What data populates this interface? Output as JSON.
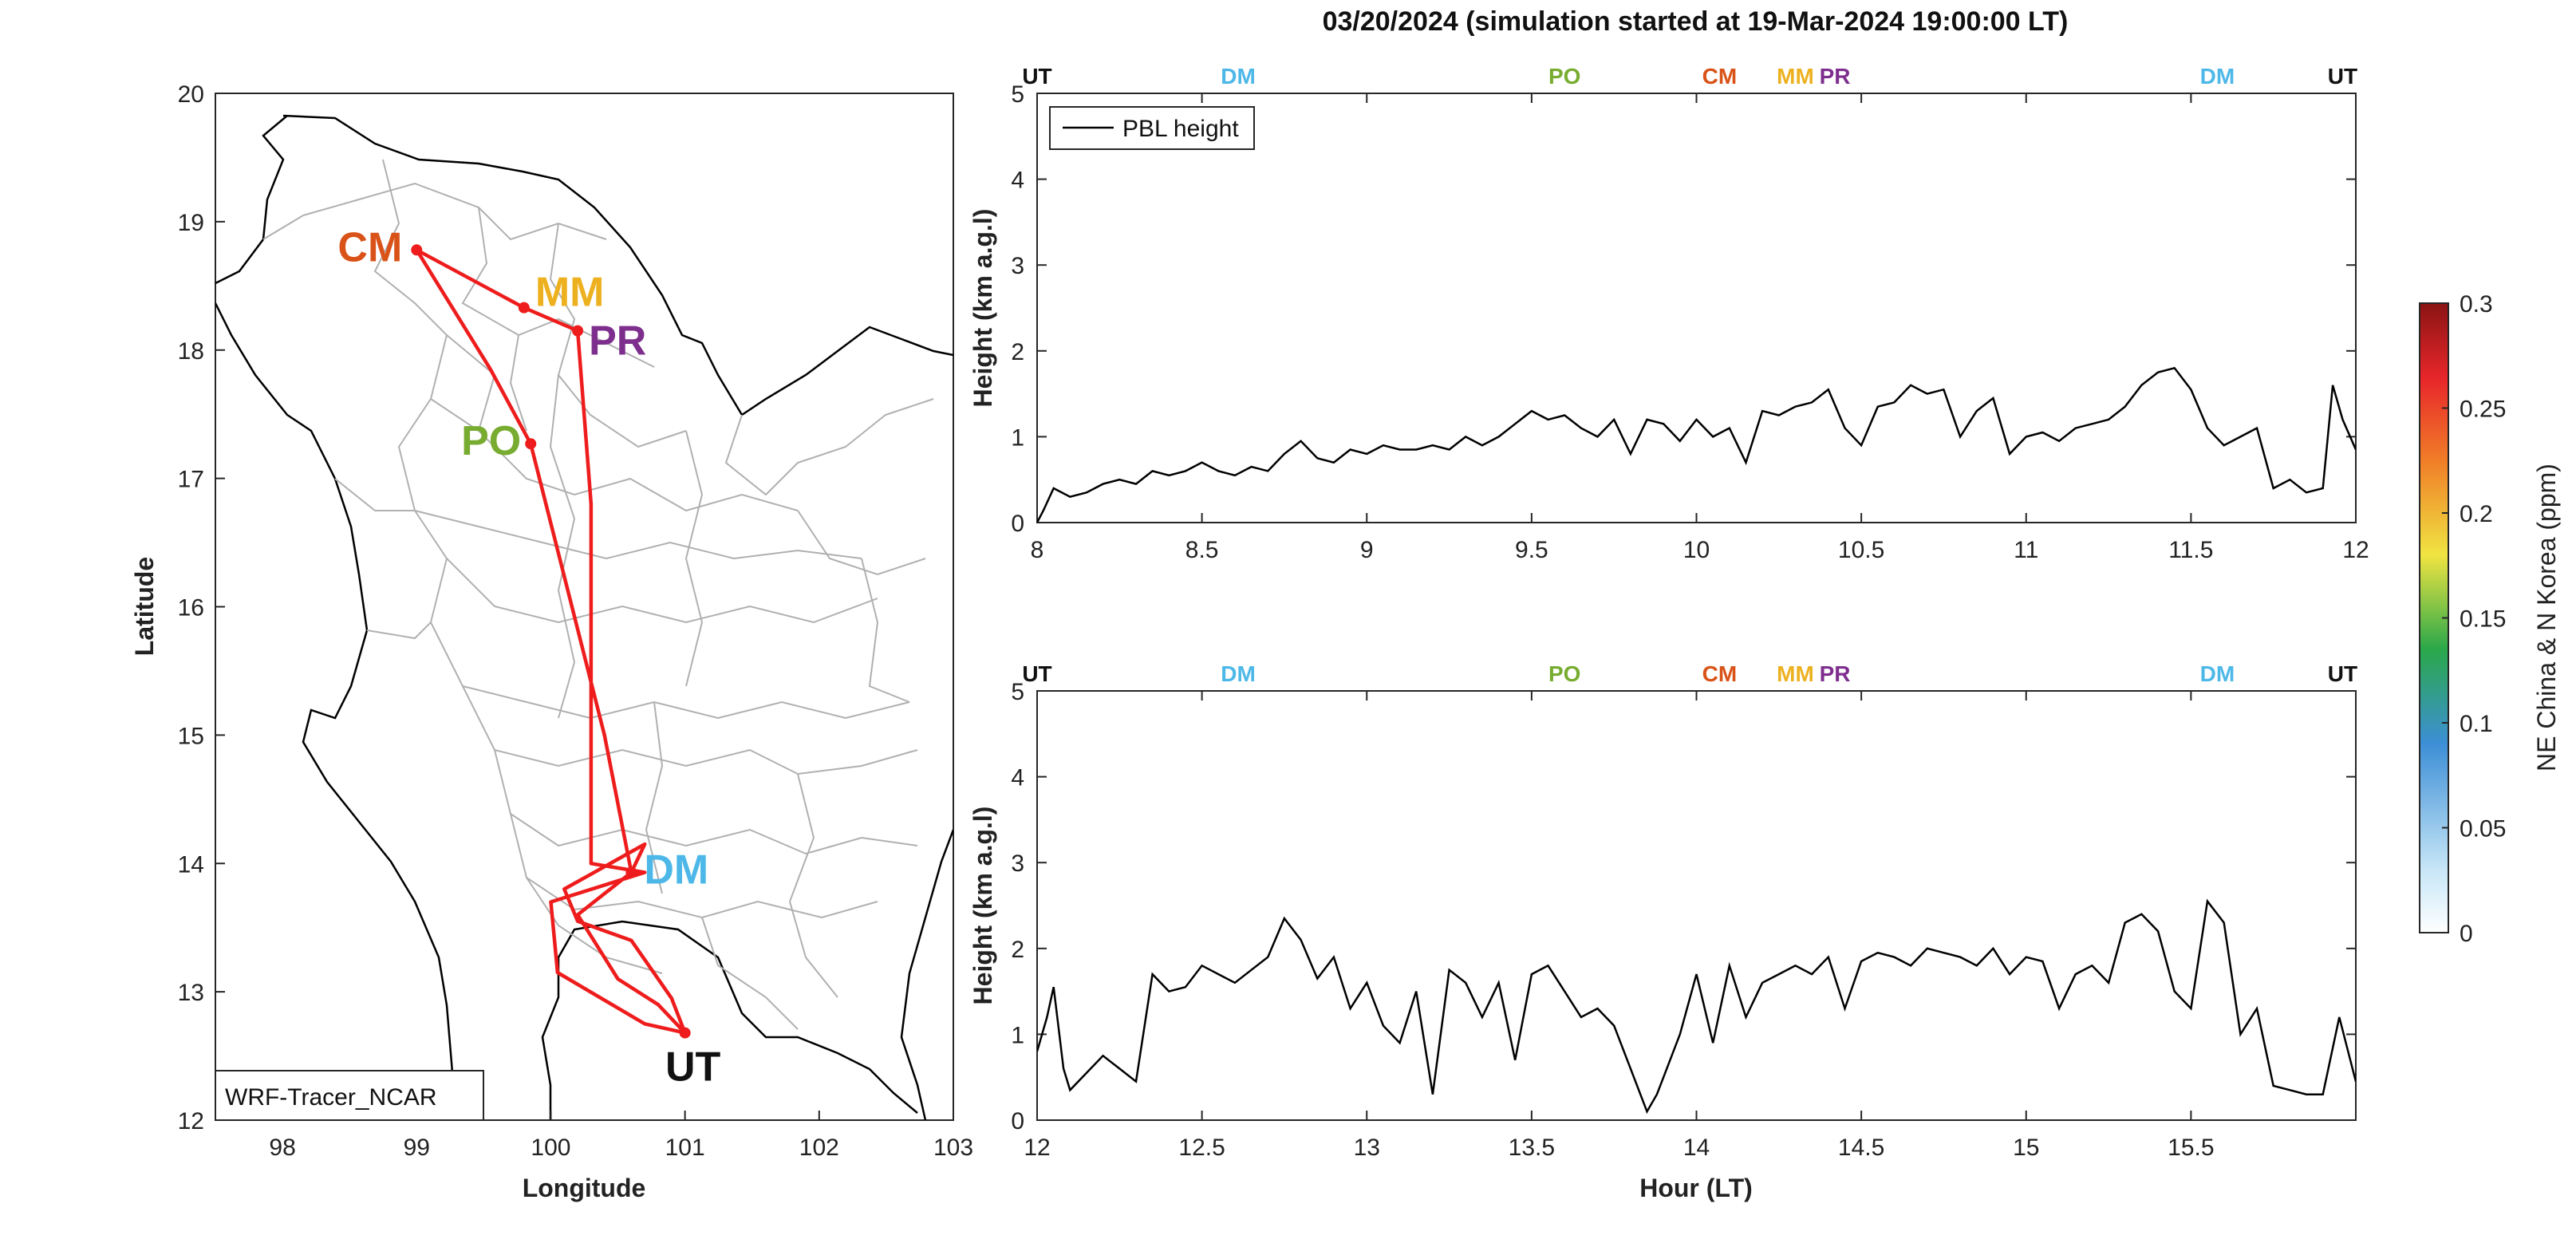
{
  "figure_title": "03/20/2024 (simulation started at 19-Mar-2024 19:00:00 LT)",
  "colors": {
    "route": "#ee1c1c",
    "pbl_line": "#000000",
    "UT": "#111111",
    "DM": "#4db8e8",
    "PO": "#77ac30",
    "CM": "#d95319",
    "MM": "#edb120",
    "PR": "#7e2f8e"
  },
  "chart_data": [
    {
      "type": "map",
      "id": "route_map",
      "xlabel": "Longitude",
      "ylabel": "Latitude",
      "xlim": [
        97.5,
        103
      ],
      "ylim": [
        12,
        20
      ],
      "xticks": [
        98,
        99,
        100,
        101,
        102,
        103
      ],
      "yticks": [
        12,
        13,
        14,
        15,
        16,
        17,
        18,
        19,
        20
      ],
      "legend": "WRF-Tracer_NCAR",
      "stations": [
        {
          "name": "CM",
          "lon": 99.0,
          "lat": 18.78
        },
        {
          "name": "MM",
          "lon": 99.8,
          "lat": 18.33
        },
        {
          "name": "PR",
          "lon": 100.2,
          "lat": 18.15
        },
        {
          "name": "PO",
          "lon": 99.85,
          "lat": 17.27
        },
        {
          "name": "DM",
          "lon": 100.6,
          "lat": 13.93
        },
        {
          "name": "UT",
          "lon": 101.0,
          "lat": 12.68
        }
      ],
      "route": [
        [
          101.0,
          12.68
        ],
        [
          100.8,
          12.9
        ],
        [
          100.5,
          13.1
        ],
        [
          100.2,
          13.6
        ],
        [
          100.6,
          13.93
        ],
        [
          100.4,
          15.0
        ],
        [
          99.85,
          17.27
        ],
        [
          99.55,
          17.85
        ],
        [
          99.0,
          18.78
        ],
        [
          99.8,
          18.33
        ],
        [
          100.2,
          18.15
        ],
        [
          100.3,
          16.8
        ],
        [
          100.3,
          14.0
        ],
        [
          100.7,
          13.93
        ],
        [
          100.0,
          13.7
        ],
        [
          100.05,
          13.15
        ],
        [
          100.7,
          12.75
        ],
        [
          101.0,
          12.68
        ],
        [
          100.9,
          12.95
        ],
        [
          100.6,
          13.4
        ],
        [
          100.2,
          13.55
        ],
        [
          100.1,
          13.8
        ],
        [
          100.7,
          14.15
        ],
        [
          100.6,
          13.93
        ]
      ]
    },
    {
      "type": "line",
      "id": "pbl_top",
      "xlabel": "",
      "ylabel": "Height (km a.g.l)",
      "xlim": [
        8,
        12
      ],
      "ylim": [
        0,
        5
      ],
      "xticks": [
        8,
        8.5,
        9,
        9.5,
        10,
        10.5,
        11,
        11.5,
        12
      ],
      "yticks": [
        0,
        1,
        2,
        3,
        4,
        5
      ],
      "legend": "PBL height",
      "top_markers": [
        {
          "label": "UT",
          "x": 8.0
        },
        {
          "label": "DM",
          "x": 8.61
        },
        {
          "label": "PO",
          "x": 9.6
        },
        {
          "label": "CM",
          "x": 10.07
        },
        {
          "label": "MM",
          "x": 10.3
        },
        {
          "label": "PR",
          "x": 10.42
        },
        {
          "label": "DM",
          "x": 11.58
        },
        {
          "label": "UT",
          "x": 11.96
        }
      ],
      "series": [
        {
          "name": "PBL height",
          "x": [
            8.0,
            8.02,
            8.05,
            8.1,
            8.15,
            8.2,
            8.25,
            8.3,
            8.35,
            8.4,
            8.45,
            8.5,
            8.55,
            8.6,
            8.65,
            8.7,
            8.75,
            8.8,
            8.85,
            8.9,
            8.95,
            9.0,
            9.05,
            9.1,
            9.15,
            9.2,
            9.25,
            9.3,
            9.35,
            9.4,
            9.45,
            9.5,
            9.55,
            9.6,
            9.65,
            9.7,
            9.75,
            9.8,
            9.85,
            9.9,
            9.95,
            10.0,
            10.05,
            10.1,
            10.15,
            10.2,
            10.25,
            10.3,
            10.35,
            10.4,
            10.45,
            10.5,
            10.55,
            10.6,
            10.65,
            10.7,
            10.75,
            10.8,
            10.85,
            10.9,
            10.95,
            11.0,
            11.05,
            11.1,
            11.15,
            11.2,
            11.25,
            11.3,
            11.35,
            11.4,
            11.45,
            11.5,
            11.55,
            11.6,
            11.65,
            11.7,
            11.75,
            11.8,
            11.85,
            11.9,
            11.93,
            11.96,
            12.0
          ],
          "values": [
            0.0,
            0.15,
            0.4,
            0.3,
            0.35,
            0.45,
            0.5,
            0.45,
            0.6,
            0.55,
            0.6,
            0.7,
            0.6,
            0.55,
            0.65,
            0.6,
            0.8,
            0.95,
            0.75,
            0.7,
            0.85,
            0.8,
            0.9,
            0.85,
            0.85,
            0.9,
            0.85,
            1.0,
            0.9,
            1.0,
            1.15,
            1.3,
            1.2,
            1.25,
            1.1,
            1.0,
            1.2,
            0.8,
            1.2,
            1.15,
            0.95,
            1.2,
            1.0,
            1.1,
            0.7,
            1.3,
            1.25,
            1.35,
            1.4,
            1.55,
            1.1,
            0.9,
            1.35,
            1.4,
            1.6,
            1.5,
            1.55,
            1.0,
            1.3,
            1.45,
            0.8,
            1.0,
            1.05,
            0.95,
            1.1,
            1.15,
            1.2,
            1.35,
            1.6,
            1.75,
            1.8,
            1.55,
            1.1,
            0.9,
            1.0,
            1.1,
            0.4,
            0.5,
            0.35,
            0.4,
            1.6,
            1.2,
            0.85
          ]
        }
      ]
    },
    {
      "type": "line",
      "id": "pbl_bottom",
      "xlabel": "Hour (LT)",
      "ylabel": "Height (km a.g.l)",
      "xlim": [
        12,
        16
      ],
      "ylim": [
        0,
        5
      ],
      "xticks": [
        12,
        12.5,
        13,
        13.5,
        14,
        14.5,
        15,
        15.5
      ],
      "yticks": [
        0,
        1,
        2,
        3,
        4,
        5
      ],
      "top_markers": [
        {
          "label": "UT",
          "x": 12.0
        },
        {
          "label": "DM",
          "x": 12.61
        },
        {
          "label": "PO",
          "x": 13.6
        },
        {
          "label": "CM",
          "x": 14.07
        },
        {
          "label": "MM",
          "x": 14.3
        },
        {
          "label": "PR",
          "x": 14.42
        },
        {
          "label": "DM",
          "x": 15.58
        },
        {
          "label": "UT",
          "x": 15.96
        }
      ],
      "series": [
        {
          "name": "PBL height",
          "x": [
            12.0,
            12.03,
            12.05,
            12.08,
            12.1,
            12.15,
            12.2,
            12.25,
            12.3,
            12.35,
            12.4,
            12.45,
            12.5,
            12.55,
            12.6,
            12.65,
            12.7,
            12.75,
            12.78,
            12.8,
            12.85,
            12.9,
            12.95,
            13.0,
            13.05,
            13.1,
            13.15,
            13.2,
            13.25,
            13.3,
            13.35,
            13.4,
            13.45,
            13.5,
            13.55,
            13.6,
            13.65,
            13.7,
            13.75,
            13.8,
            13.85,
            13.88,
            13.9,
            13.95,
            14.0,
            14.05,
            14.1,
            14.15,
            14.2,
            14.25,
            14.3,
            14.35,
            14.4,
            14.45,
            14.5,
            14.55,
            14.6,
            14.65,
            14.7,
            14.75,
            14.8,
            14.85,
            14.9,
            14.95,
            15.0,
            15.05,
            15.1,
            15.15,
            15.2,
            15.25,
            15.3,
            15.35,
            15.4,
            15.45,
            15.5,
            15.55,
            15.6,
            15.65,
            15.7,
            15.75,
            15.8,
            15.85,
            15.9,
            15.95,
            16.0
          ],
          "values": [
            0.8,
            1.2,
            1.55,
            0.6,
            0.35,
            0.55,
            0.75,
            0.6,
            0.45,
            1.7,
            1.5,
            1.55,
            1.8,
            1.7,
            1.6,
            1.75,
            1.9,
            2.35,
            2.2,
            2.1,
            1.65,
            1.9,
            1.3,
            1.6,
            1.1,
            0.9,
            1.5,
            0.3,
            1.75,
            1.6,
            1.2,
            1.6,
            0.7,
            1.7,
            1.8,
            1.5,
            1.2,
            1.3,
            1.1,
            0.6,
            0.1,
            0.3,
            0.5,
            1.0,
            1.7,
            0.9,
            1.8,
            1.2,
            1.6,
            1.7,
            1.8,
            1.7,
            1.9,
            1.3,
            1.85,
            1.95,
            1.9,
            1.8,
            2.0,
            1.95,
            1.9,
            1.8,
            2.0,
            1.7,
            1.9,
            1.85,
            1.3,
            1.7,
            1.8,
            1.6,
            2.3,
            2.4,
            2.2,
            1.5,
            1.3,
            2.55,
            2.3,
            1.0,
            1.3,
            0.4,
            0.35,
            0.3,
            0.3,
            1.2,
            0.45
          ]
        }
      ]
    },
    {
      "type": "colorbar",
      "id": "tracer_colorbar",
      "label": "NE China & N Korea (ppm)",
      "range": [
        0,
        0.3
      ],
      "ticks": [
        "0",
        "0.05",
        "0.1",
        "0.15",
        "0.2",
        "0.25",
        "0.3"
      ],
      "stops": [
        "#ffffff",
        "#c7e6f7",
        "#3d8fd6",
        "#2aa84a",
        "#f0e442",
        "#f07d28",
        "#e8262a",
        "#8b1414"
      ]
    }
  ]
}
